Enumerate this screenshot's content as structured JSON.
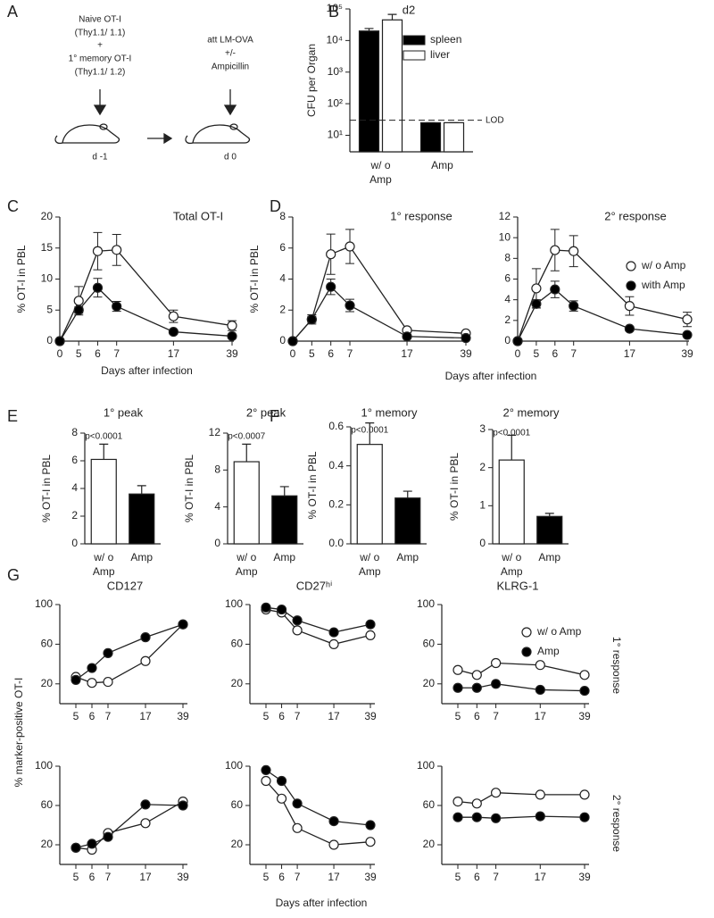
{
  "panel_labels": [
    "A",
    "B",
    "C",
    "D",
    "E",
    "F",
    "G"
  ],
  "diagram": {
    "mouse1": [
      "Naive OT-I",
      "(Thy1.1/ 1.1)",
      "+",
      "1° memory OT-I",
      "(Thy1.1/ 1.2)"
    ],
    "mouse1_day": "d -1",
    "mouse2": [
      "att LM-OVA",
      "+/-",
      "Ampicillin"
    ],
    "mouse2_day": "d 0"
  },
  "shared_labels": {
    "d_xlabel": "Days after infection",
    "g_ylabel": "% marker-positive OT-I",
    "g_xlabel": "Days after infection",
    "g_rows": [
      "1° response",
      "2° response"
    ]
  },
  "chart_data": [
    {
      "type": "bar",
      "title": "d2",
      "ylabel": "CFU per Organ",
      "log": true,
      "categories": [
        [
          "w/ o",
          "Amp"
        ],
        [
          "Amp"
        ]
      ],
      "series": [
        {
          "name": "spleen",
          "color": "#000000",
          "values": [
            20000,
            25
          ],
          "errors": [
            4000,
            0
          ]
        },
        {
          "name": "liver",
          "color": "#ffffff",
          "values": [
            45000,
            25
          ],
          "errors": [
            22000,
            0
          ]
        }
      ],
      "ylim": [
        3,
        100000
      ],
      "yticks": [
        {
          "value": 10,
          "label": "10¹"
        },
        {
          "value": 100,
          "label": "10²"
        },
        {
          "value": 1000,
          "label": "10³"
        },
        {
          "value": 10000,
          "label": "10⁴"
        },
        {
          "value": 100000,
          "label": "10⁵"
        }
      ],
      "lod": {
        "value": 30,
        "label": "LOD"
      },
      "legend": "upper right"
    },
    {
      "type": "line",
      "title": "Total OT-I",
      "ylabel": "% OT-I in PBL",
      "xlabel": "Days after infection",
      "categories": [
        0,
        5,
        6,
        7,
        17,
        39
      ],
      "series": [
        {
          "color": "#ffffff",
          "values": [
            0,
            6.5,
            14.5,
            14.7,
            4.0,
            2.5
          ],
          "errors": [
            0,
            2.3,
            3,
            2.5,
            1,
            0.8
          ]
        },
        {
          "color": "#000000",
          "values": [
            0,
            5,
            8.6,
            5.6,
            1.5,
            0.8
          ],
          "errors": [
            0,
            0.5,
            1.5,
            0.8,
            0.3,
            0.2
          ]
        }
      ],
      "ylim": [
        0,
        20
      ],
      "yticks": [
        0,
        5,
        10,
        15,
        20
      ]
    },
    {
      "type": "line",
      "title": "1° response",
      "ylabel": "% OT-I in PBL",
      "categories": [
        0,
        5,
        6,
        7,
        17,
        39
      ],
      "series": [
        {
          "color": "#ffffff",
          "values": [
            0,
            1.4,
            5.6,
            6.1,
            0.7,
            0.5
          ],
          "errors": [
            0,
            0.3,
            1.3,
            1.1,
            0.1,
            0.1
          ]
        },
        {
          "color": "#000000",
          "values": [
            0,
            1.4,
            3.5,
            2.3,
            0.3,
            0.2
          ],
          "errors": [
            0,
            0.2,
            0.5,
            0.4,
            0.05,
            0.05
          ]
        }
      ],
      "ylim": [
        0,
        8
      ],
      "yticks": [
        0,
        2,
        4,
        6,
        8
      ]
    },
    {
      "type": "line",
      "title": "2° response",
      "categories": [
        0,
        5,
        6,
        7,
        17,
        39
      ],
      "series": [
        {
          "name": "w/ o Amp",
          "color": "#ffffff",
          "values": [
            0,
            5.1,
            8.8,
            8.7,
            3.4,
            2.1
          ],
          "errors": [
            0,
            1.9,
            2,
            1.5,
            0.9,
            0.7
          ]
        },
        {
          "name": "with Amp",
          "color": "#000000",
          "values": [
            0,
            3.6,
            5.0,
            3.4,
            1.2,
            0.6
          ],
          "errors": [
            0,
            0.4,
            0.8,
            0.5,
            0.2,
            0.1
          ]
        }
      ],
      "ylim": [
        0,
        12
      ],
      "yticks": [
        0,
        2,
        4,
        6,
        8,
        10,
        12
      ],
      "legend": "upper right"
    },
    {
      "type": "bar",
      "title": "1° peak",
      "ylabel": "% OT-I in PBL",
      "annotation": "p<0.0001",
      "categories": [
        [
          "w/ o",
          "Amp"
        ],
        [
          "Amp"
        ]
      ],
      "series": [
        {
          "colors": [
            "#ffffff",
            "#000000"
          ],
          "values": [
            6.1,
            3.6
          ],
          "errors": [
            1.1,
            0.6
          ]
        }
      ],
      "ylim": [
        0,
        8
      ],
      "yticks": [
        0,
        2,
        4,
        6,
        8
      ]
    },
    {
      "type": "bar",
      "title": "2° peak",
      "ylabel": "% OT-I in PBL",
      "annotation": "p<0.0007",
      "categories": [
        [
          "w/ o",
          "Amp"
        ],
        [
          "Amp"
        ]
      ],
      "series": [
        {
          "colors": [
            "#ffffff",
            "#000000"
          ],
          "values": [
            8.9,
            5.2
          ],
          "errors": [
            1.9,
            1.0
          ]
        }
      ],
      "ylim": [
        0,
        12
      ],
      "yticks": [
        0,
        4,
        8,
        12
      ]
    },
    {
      "type": "bar",
      "title": "1° memory",
      "ylabel": "% OT-I in PBL",
      "annotation": "p<0.0001",
      "categories": [
        [
          "w/ o",
          "Amp"
        ],
        [
          "Amp"
        ]
      ],
      "series": [
        {
          "colors": [
            "#ffffff",
            "#000000"
          ],
          "values": [
            0.51,
            0.235
          ],
          "errors": [
            0.11,
            0.035
          ]
        }
      ],
      "ylim": [
        0,
        0.6
      ],
      "yticks": [
        {
          "value": 0,
          "label": "0.0"
        },
        {
          "value": 0.2,
          "label": "0.2"
        },
        {
          "value": 0.4,
          "label": "0.4"
        },
        {
          "value": 0.6,
          "label": "0.6"
        }
      ]
    },
    {
      "type": "bar",
      "title": "2° memory",
      "ylabel": "% OT-I in PBL",
      "annotation": "p<0.0001",
      "categories": [
        [
          "w/ o",
          "Amp"
        ],
        [
          "Amp"
        ]
      ],
      "series": [
        {
          "colors": [
            "#ffffff",
            "#000000"
          ],
          "values": [
            2.2,
            0.72
          ],
          "errors": [
            0.65,
            0.08
          ]
        }
      ],
      "ylim": [
        0,
        3
      ],
      "yticks": [
        0,
        1,
        2,
        3
      ]
    },
    {
      "type": "line",
      "title": "CD127",
      "categories": [
        5,
        6,
        7,
        17,
        39
      ],
      "series": [
        {
          "color": "#ffffff",
          "values": [
            27,
            21,
            22,
            43,
            80
          ]
        },
        {
          "color": "#000000",
          "values": [
            24,
            36,
            51,
            67,
            80
          ]
        }
      ],
      "ylim": [
        0,
        100
      ],
      "yticks": [
        20,
        60,
        100
      ]
    },
    {
      "type": "line",
      "title": "CD27ʰⁱ",
      "categories": [
        5,
        6,
        7,
        17,
        39
      ],
      "series": [
        {
          "color": "#ffffff",
          "values": [
            95,
            92,
            74,
            60,
            69
          ]
        },
        {
          "color": "#000000",
          "values": [
            97,
            95,
            84,
            72,
            80
          ]
        }
      ],
      "ylim": [
        0,
        100
      ],
      "yticks": [
        20,
        60,
        100
      ]
    },
    {
      "type": "line",
      "title": "KLRG-1",
      "categories": [
        5,
        6,
        7,
        17,
        39
      ],
      "series": [
        {
          "name": "w/ o Amp",
          "color": "#ffffff",
          "values": [
            34,
            29,
            41,
            39,
            29
          ]
        },
        {
          "name": "Amp",
          "color": "#000000",
          "values": [
            16,
            16,
            20,
            14,
            13
          ]
        }
      ],
      "ylim": [
        0,
        100
      ],
      "yticks": [
        20,
        60,
        100
      ],
      "legend": "upper right"
    },
    {
      "type": "line",
      "categories": [
        5,
        6,
        7,
        17,
        39
      ],
      "series": [
        {
          "color": "#ffffff",
          "values": [
            17,
            15,
            32,
            42,
            64
          ]
        },
        {
          "color": "#000000",
          "values": [
            17,
            21,
            28,
            61,
            60
          ]
        }
      ],
      "ylim": [
        0,
        100
      ],
      "yticks": [
        20,
        60,
        100
      ]
    },
    {
      "type": "line",
      "categories": [
        5,
        6,
        7,
        17,
        39
      ],
      "series": [
        {
          "color": "#ffffff",
          "values": [
            85,
            67,
            37,
            20,
            23
          ]
        },
        {
          "color": "#000000",
          "values": [
            96,
            85,
            62,
            44,
            40
          ]
        }
      ],
      "ylim": [
        0,
        100
      ],
      "yticks": [
        20,
        60,
        100
      ]
    },
    {
      "type": "line",
      "categories": [
        5,
        6,
        7,
        17,
        39
      ],
      "series": [
        {
          "color": "#ffffff",
          "values": [
            64,
            62,
            73,
            71,
            71
          ]
        },
        {
          "color": "#000000",
          "values": [
            48,
            48,
            47,
            49,
            48
          ]
        }
      ],
      "ylim": [
        0,
        100
      ],
      "yticks": [
        20,
        60,
        100
      ]
    }
  ]
}
